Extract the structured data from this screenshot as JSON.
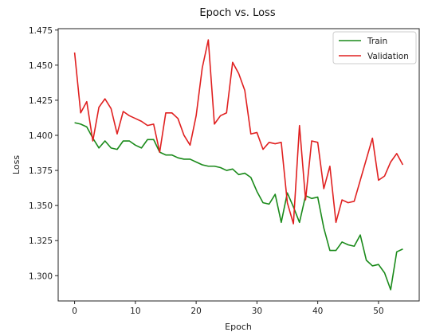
{
  "chart_data": {
    "type": "line",
    "title": "Epoch vs. Loss",
    "xlabel": "Epoch",
    "ylabel": "Loss",
    "xlim": [
      -2.7,
      56.7
    ],
    "ylim": [
      1.282,
      1.476
    ],
    "xticks": [
      0,
      10,
      20,
      30,
      40,
      50
    ],
    "yticks": [
      1.3,
      1.325,
      1.35,
      1.375,
      1.4,
      1.425,
      1.45,
      1.475
    ],
    "ytick_labels": [
      "1.300",
      "1.325",
      "1.350",
      "1.375",
      "1.400",
      "1.425",
      "1.450",
      "1.475"
    ],
    "grid": false,
    "legend_position": "top-right",
    "series": [
      {
        "name": "Train",
        "color": "#1a8a1a",
        "x": [
          0,
          1,
          2,
          3,
          4,
          5,
          6,
          7,
          8,
          9,
          10,
          11,
          12,
          13,
          14,
          15,
          16,
          17,
          18,
          19,
          20,
          21,
          22,
          23,
          24,
          25,
          26,
          27,
          28,
          29,
          30,
          31,
          32,
          33,
          34,
          35,
          36,
          37,
          38,
          39,
          40,
          41,
          42,
          43,
          44,
          45,
          46,
          47,
          48,
          49,
          50,
          51,
          52,
          53,
          54
        ],
        "values": [
          1.409,
          1.408,
          1.406,
          1.398,
          1.391,
          1.396,
          1.391,
          1.39,
          1.396,
          1.396,
          1.393,
          1.391,
          1.397,
          1.397,
          1.388,
          1.386,
          1.386,
          1.384,
          1.383,
          1.383,
          1.381,
          1.379,
          1.378,
          1.378,
          1.377,
          1.375,
          1.376,
          1.372,
          1.373,
          1.37,
          1.36,
          1.352,
          1.351,
          1.358,
          1.338,
          1.359,
          1.349,
          1.338,
          1.357,
          1.355,
          1.356,
          1.334,
          1.318,
          1.318,
          1.324,
          1.322,
          1.321,
          1.329,
          1.311,
          1.307,
          1.308,
          1.302,
          1.29,
          1.317,
          1.319
        ]
      },
      {
        "name": "Validation",
        "color": "#e02020",
        "x": [
          0,
          1,
          2,
          3,
          4,
          5,
          6,
          7,
          8,
          9,
          10,
          11,
          12,
          13,
          14,
          15,
          16,
          17,
          18,
          19,
          20,
          21,
          22,
          23,
          24,
          25,
          26,
          27,
          28,
          29,
          30,
          31,
          32,
          33,
          34,
          35,
          36,
          37,
          38,
          39,
          40,
          41,
          42,
          43,
          44,
          45,
          46,
          47,
          48,
          49,
          50,
          51,
          52,
          53,
          54
        ],
        "values": [
          1.459,
          1.416,
          1.424,
          1.396,
          1.42,
          1.426,
          1.419,
          1.401,
          1.417,
          1.414,
          1.412,
          1.41,
          1.407,
          1.408,
          1.388,
          1.416,
          1.416,
          1.412,
          1.4,
          1.393,
          1.414,
          1.448,
          1.468,
          1.408,
          1.414,
          1.416,
          1.452,
          1.444,
          1.432,
          1.401,
          1.402,
          1.39,
          1.395,
          1.394,
          1.395,
          1.352,
          1.337,
          1.407,
          1.354,
          1.396,
          1.395,
          1.362,
          1.378,
          1.338,
          1.354,
          1.352,
          1.353,
          1.368,
          1.383,
          1.398,
          1.368,
          1.371,
          1.381,
          1.387,
          1.379
        ]
      }
    ]
  }
}
